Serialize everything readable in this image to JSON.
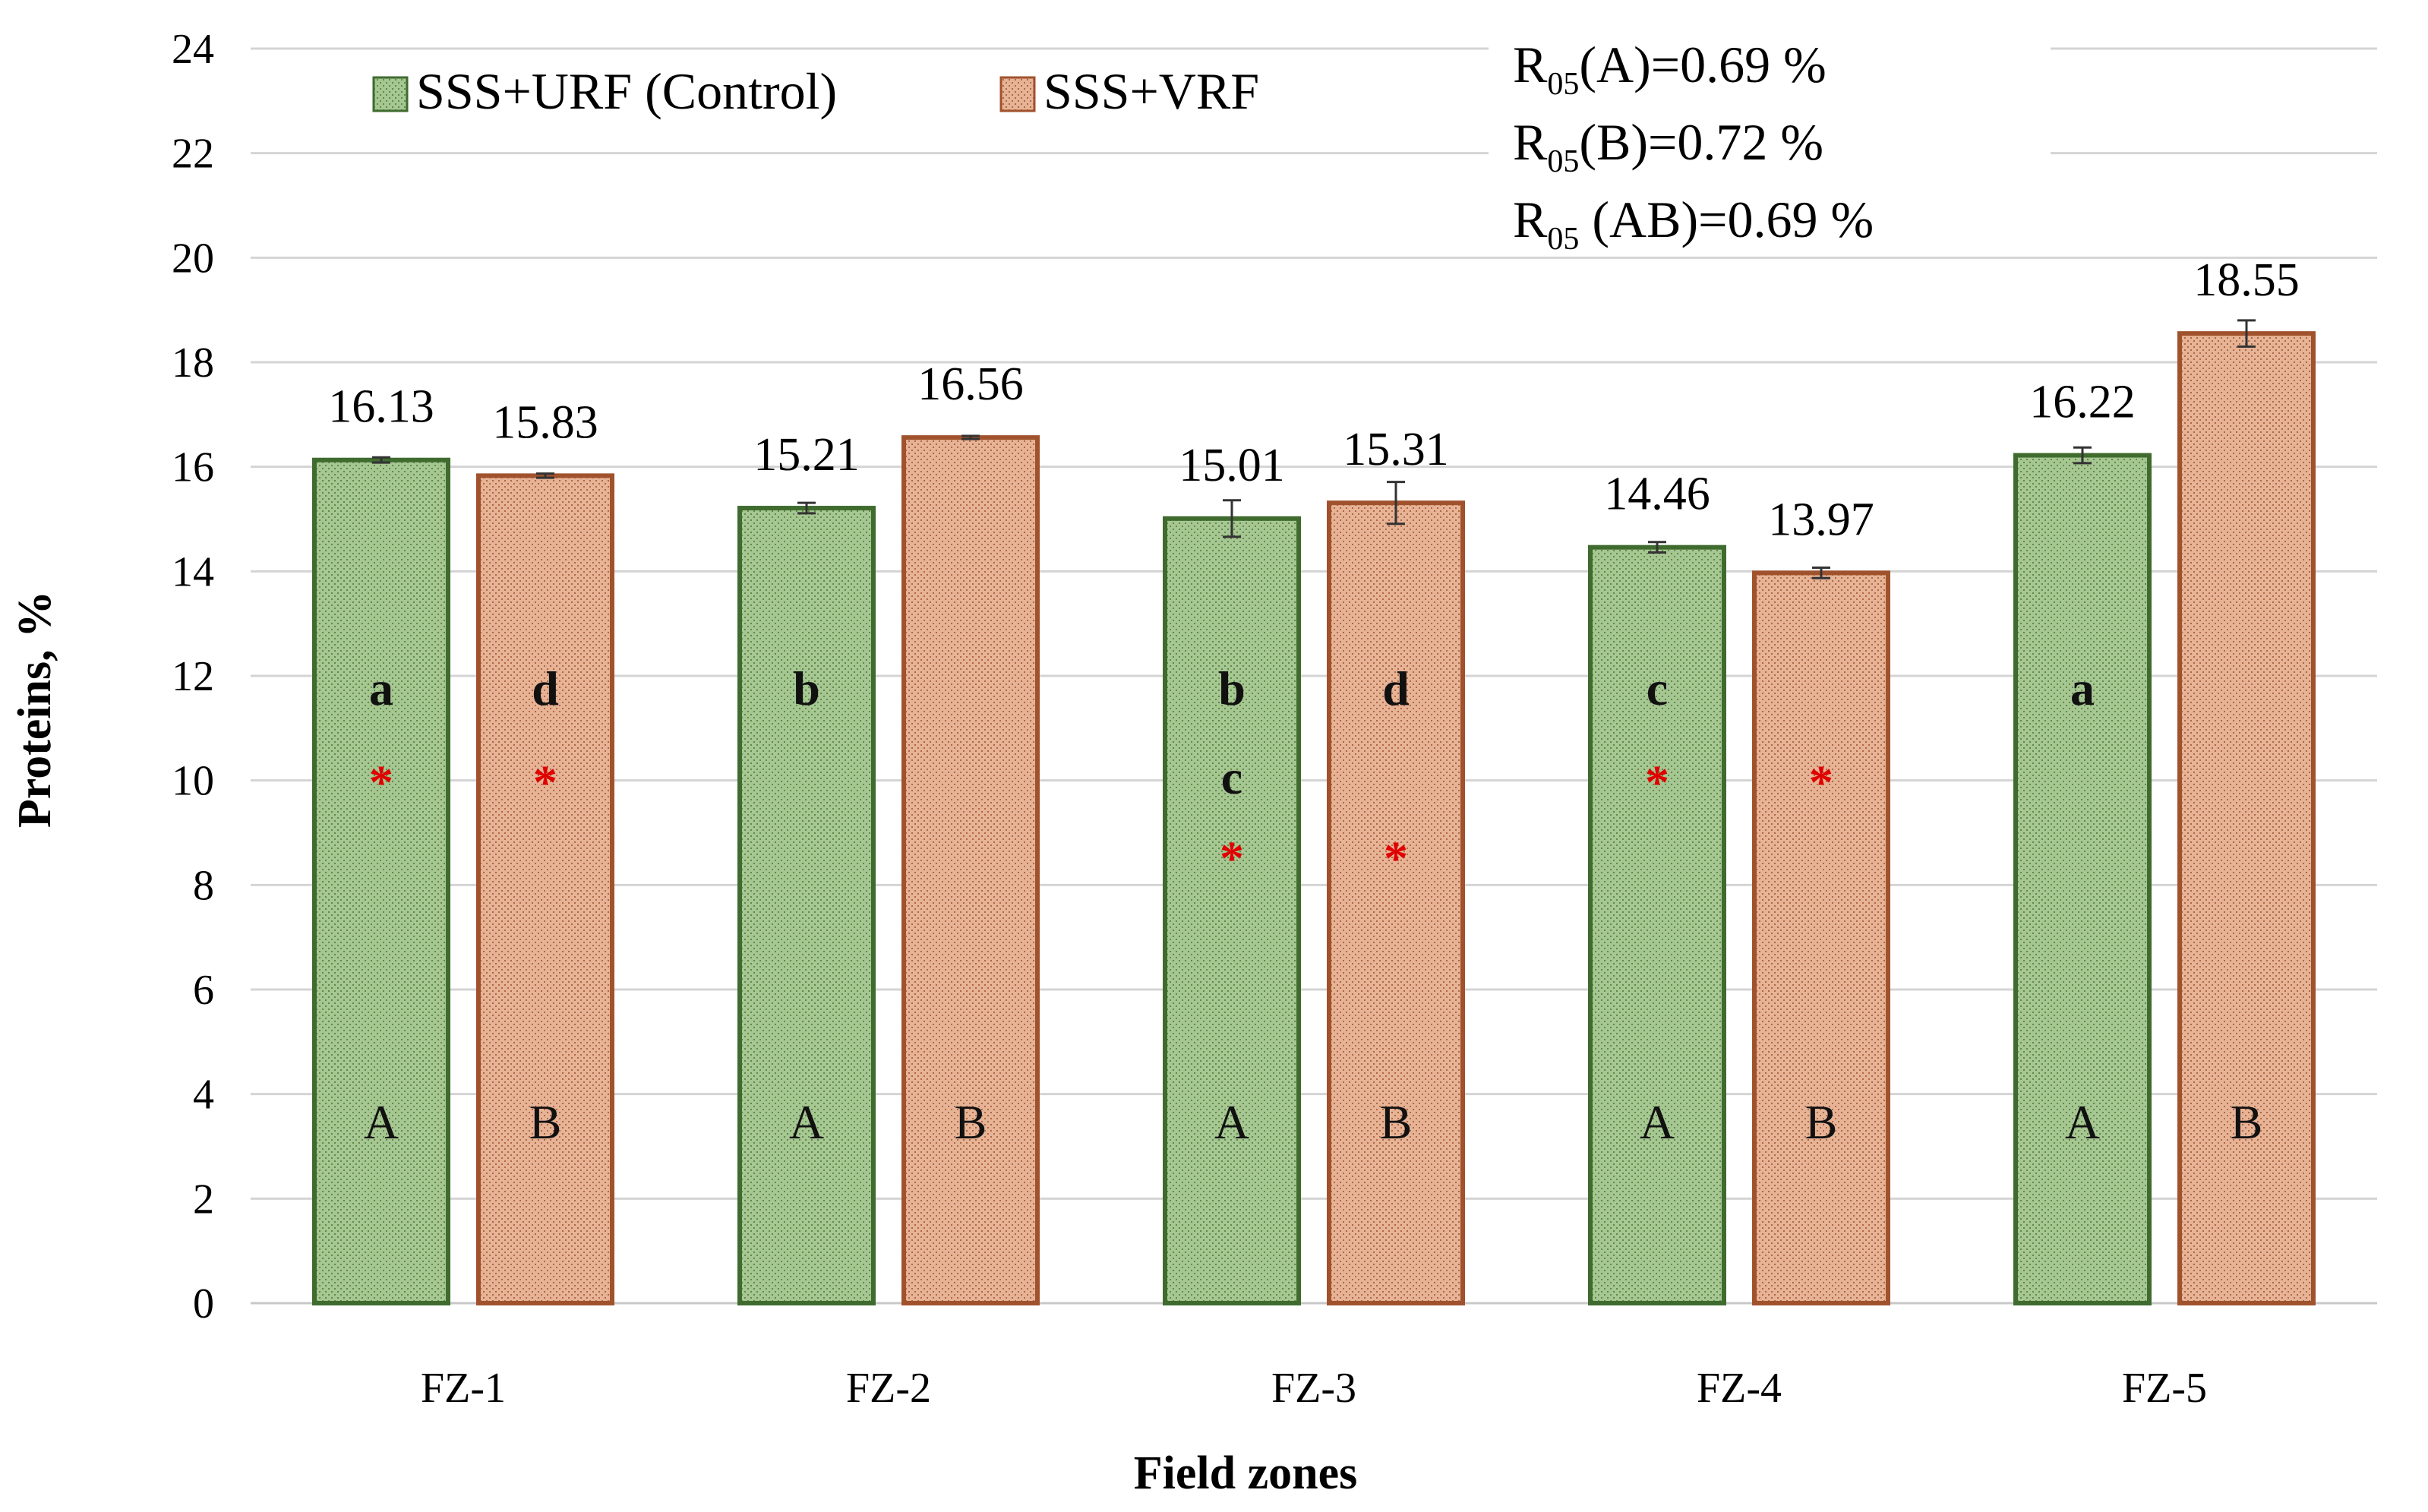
{
  "chart_data": {
    "type": "bar",
    "title": "",
    "xlabel": "Field zones",
    "ylabel": "Proteins, %",
    "ylim": [
      0,
      24
    ],
    "yticks": [
      "0",
      "2",
      "4",
      "6",
      "8",
      "10",
      "12",
      "14",
      "16",
      "18",
      "20",
      "22",
      "24"
    ],
    "grid": true,
    "legend_position": "top-left",
    "categories": [
      "FZ-1",
      "FZ-2",
      "FZ-3",
      "FZ-4",
      "FZ-5"
    ],
    "series": [
      {
        "name": "SSS+URF (Control)",
        "color": "#9fc28a",
        "edge": "#3f6b2f",
        "values": [
          16.13,
          15.21,
          15.01,
          14.46,
          16.22
        ],
        "labels": [
          "16.13",
          "15.21",
          "15.01",
          "14.46",
          "16.22"
        ],
        "errors": [
          0.05,
          0.1,
          0.35,
          0.1,
          0.15
        ],
        "treatment_letter": "A",
        "group_letters": [
          "a",
          "b",
          "b",
          "c",
          "a"
        ],
        "group_letters_2": [
          "",
          "",
          "c",
          "",
          ""
        ],
        "stars": [
          "*",
          "",
          "*",
          "*",
          ""
        ]
      },
      {
        "name": "SSS+VRF",
        "color": "#e0ab8e",
        "edge": "#a0522d",
        "values": [
          15.83,
          16.56,
          15.31,
          13.97,
          18.55
        ],
        "labels": [
          "15.83",
          "16.56",
          "15.31",
          "13.97",
          "18.55"
        ],
        "errors": [
          0.04,
          0.03,
          0.4,
          0.1,
          0.25
        ],
        "treatment_letter": "B",
        "group_letters": [
          "d",
          "",
          "d",
          "",
          ""
        ],
        "group_letters_2": [
          "",
          "",
          "",
          "",
          ""
        ],
        "stars": [
          "*",
          "",
          "*",
          "*",
          ""
        ]
      }
    ],
    "annotations": [
      {
        "base": "R",
        "sub": "05",
        "text": "(A)=0.69 %"
      },
      {
        "base": "R",
        "sub": "05",
        "text": "(B)=0.72 %"
      },
      {
        "base": "R",
        "sub": "05",
        "text": " (AB)=0.69 %"
      }
    ]
  }
}
